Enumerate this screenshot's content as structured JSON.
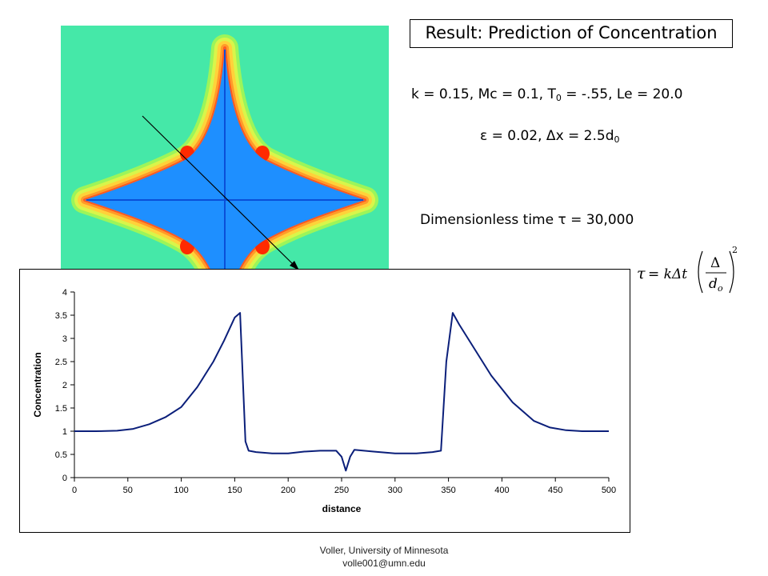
{
  "title": "Result: Prediction of Concentration",
  "params": {
    "line1": {
      "k": "k = 0.15",
      "mc": "Mc = 0.1",
      "t0_symbol": "T",
      "t0_sub": "0",
      "t0_value": " = -.55",
      "le": "Le = 20.0"
    },
    "line2": {
      "epsilon_symbol": "ε",
      "epsilon_value": " = 0.02, ",
      "dx_symbol": "Δ",
      "dx_value": "x = 2.5d",
      "dx_sub": "0"
    }
  },
  "time": {
    "label": "Dimensionless time ",
    "symbol": "τ",
    "value": " = 30,000"
  },
  "formula": {
    "tau": "τ",
    "eq": "= kΔt",
    "num": "Δ",
    "den": "d",
    "den_sub": "o",
    "power": "2"
  },
  "simulation": {
    "background_color": "#45e8a8",
    "crystal_color": "#1e8fff",
    "axis_color": "#0a4fd8",
    "hot_color": "#ff2a00"
  },
  "chart_data": {
    "type": "line",
    "xlabel": "distance",
    "ylabel": "Concentration",
    "xlim": [
      0,
      500
    ],
    "ylim": [
      0,
      4
    ],
    "xticks": [
      0,
      50,
      100,
      150,
      200,
      250,
      300,
      350,
      400,
      450,
      500
    ],
    "yticks": [
      0,
      0.5,
      1,
      1.5,
      2,
      2.5,
      3,
      3.5,
      4
    ],
    "line_color": "#0b1f7a",
    "series": [
      {
        "x": [
          0,
          20,
          40,
          55,
          70,
          85,
          100,
          115,
          130,
          140,
          150,
          155,
          160,
          163,
          170,
          185,
          200,
          215,
          230,
          245,
          250,
          254,
          258,
          262,
          280,
          300,
          320,
          335,
          343,
          348,
          354,
          360,
          375,
          390,
          410,
          430,
          445,
          460,
          475,
          490,
          500
        ],
        "y": [
          1.0,
          1.0,
          1.01,
          1.05,
          1.15,
          1.3,
          1.52,
          1.95,
          2.5,
          2.95,
          3.45,
          3.55,
          0.78,
          0.58,
          0.55,
          0.52,
          0.52,
          0.56,
          0.58,
          0.58,
          0.45,
          0.15,
          0.45,
          0.6,
          0.56,
          0.52,
          0.52,
          0.55,
          0.58,
          2.5,
          3.55,
          3.3,
          2.75,
          2.2,
          1.62,
          1.22,
          1.08,
          1.02,
          1.0,
          1.0,
          1.0
        ]
      }
    ]
  },
  "footer": {
    "line1": "Voller, University of Minnesota",
    "line2": "volle001@umn.edu"
  }
}
